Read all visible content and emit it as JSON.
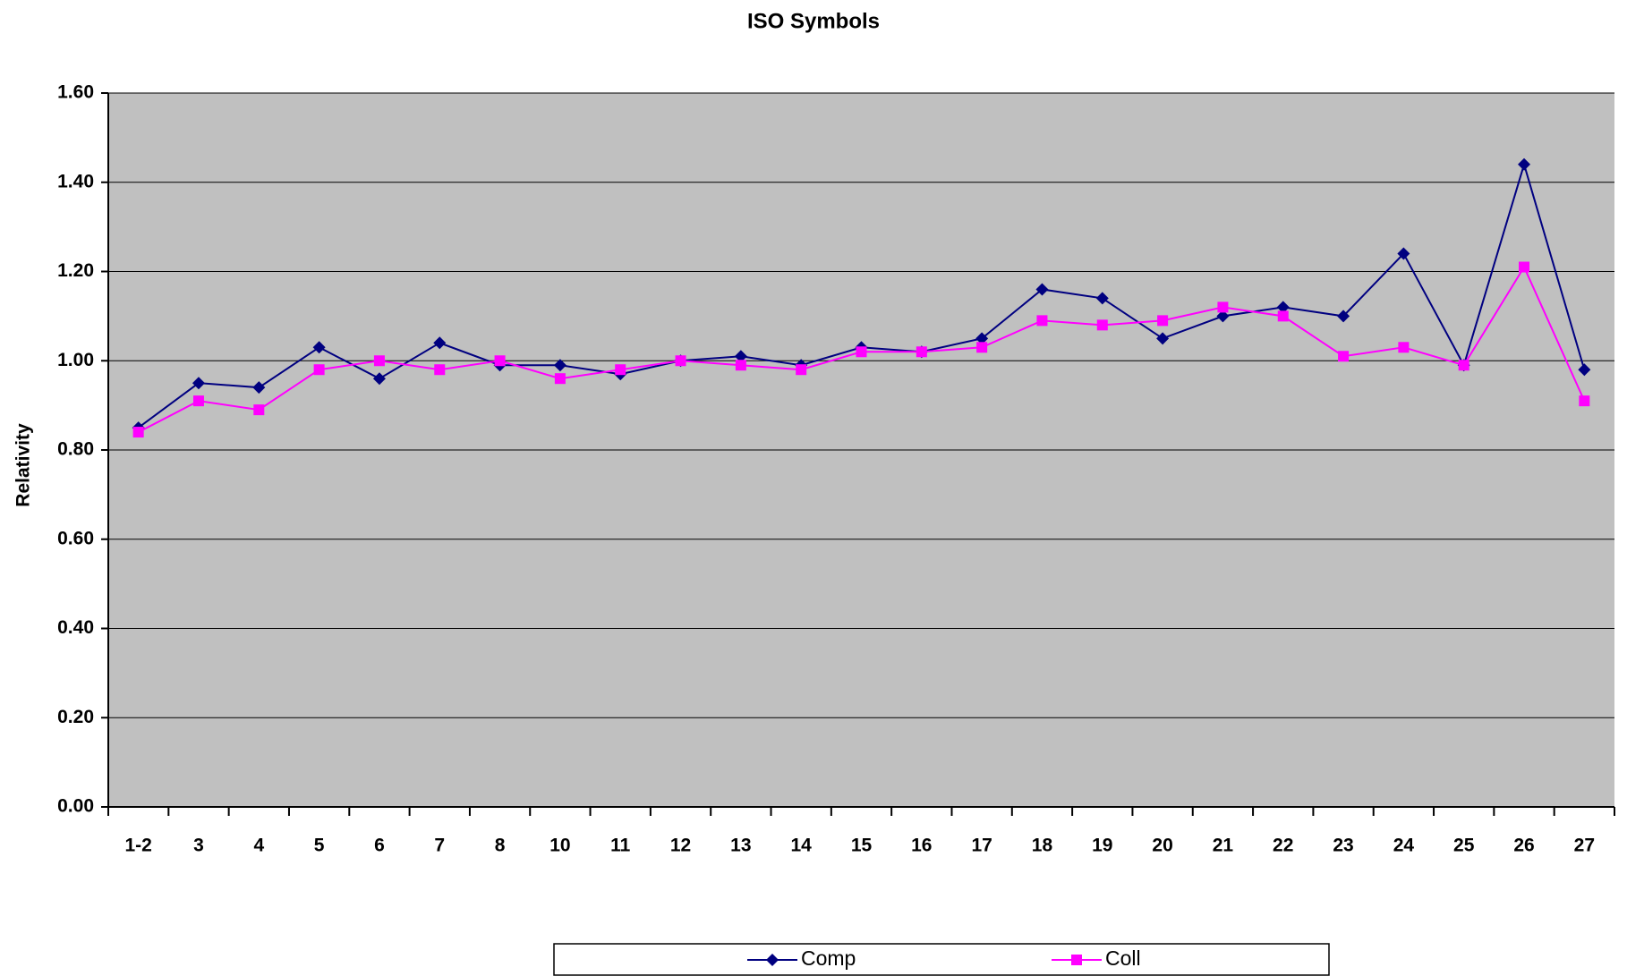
{
  "chart_data": {
    "type": "line",
    "title": "ISO Symbols",
    "y_label": "Relativity",
    "categories": [
      "1-2",
      "3",
      "4",
      "5",
      "6",
      "7",
      "8",
      "10",
      "11",
      "12",
      "13",
      "14",
      "15",
      "16",
      "17",
      "18",
      "19",
      "20",
      "21",
      "22",
      "23",
      "24",
      "25",
      "26",
      "27"
    ],
    "series": [
      {
        "name": "Comp",
        "color": "#000080",
        "marker": "diamond",
        "values": [
          0.85,
          0.95,
          0.94,
          1.03,
          0.96,
          1.04,
          0.99,
          0.99,
          0.97,
          1.0,
          1.01,
          0.99,
          1.03,
          1.02,
          1.05,
          1.16,
          1.14,
          1.05,
          1.1,
          1.12,
          1.1,
          1.24,
          0.99,
          1.44,
          0.98
        ]
      },
      {
        "name": "Coll",
        "color": "#ff00ff",
        "marker": "square",
        "values": [
          0.84,
          0.91,
          0.89,
          0.98,
          1.0,
          0.98,
          1.0,
          0.96,
          0.98,
          1.0,
          0.99,
          0.98,
          1.02,
          1.02,
          1.03,
          1.09,
          1.08,
          1.09,
          1.12,
          1.1,
          1.01,
          1.03,
          0.99,
          1.21,
          0.91
        ]
      }
    ],
    "ylim": [
      0,
      1.6
    ],
    "yticks": [
      {
        "value": 0,
        "label": "0.00"
      },
      {
        "value": 0.2,
        "label": "0.20"
      },
      {
        "value": 0.4,
        "label": "0.40"
      },
      {
        "value": 0.6,
        "label": "0.60"
      },
      {
        "value": 0.8,
        "label": "0.80"
      },
      {
        "value": 1.0,
        "label": "1.00"
      },
      {
        "value": 1.2,
        "label": "1.20"
      },
      {
        "value": 1.4,
        "label": "1.40"
      },
      {
        "value": 1.6,
        "label": "1.60"
      }
    ],
    "grid": true,
    "plot_background": "#c0c0c0",
    "legend": "bottom"
  }
}
